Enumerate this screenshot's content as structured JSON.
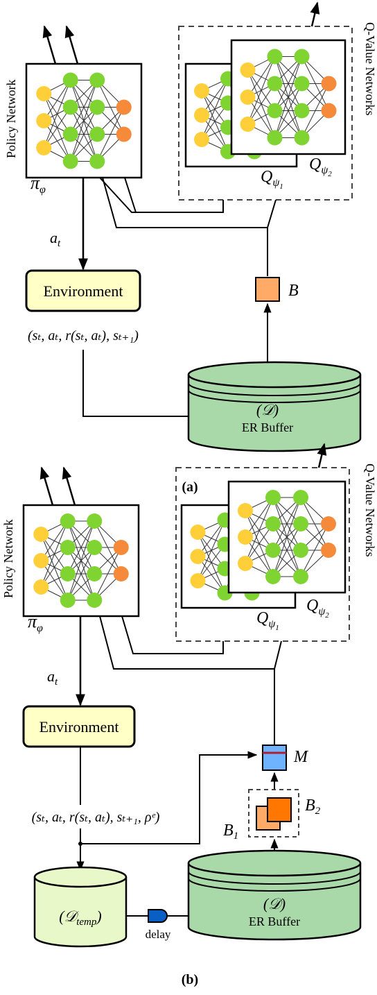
{
  "colors": {
    "input_node": "#ffcf3a",
    "hidden_node": "#7fd432",
    "output_node": "#f58a3a",
    "environment_fill": "#ffffc6",
    "buffer_fill": "#a9d9a9",
    "temp_buffer_fill": "#e9f8c9",
    "batch_fill": "#ffaa66",
    "batch2_fill": "#ff7700",
    "merge_fill": "#6fb3ff",
    "merge_line": "#b01e32",
    "delay_fill": "#0a5fc4",
    "edge": "#333333",
    "arrow": "#000000"
  },
  "panel_a": {
    "caption": "(a)",
    "policy_label": "Policy Network",
    "policy_symbol": "π",
    "policy_sub": "φ",
    "q_label": "Q-Value Networks",
    "q1_symbol": "Q",
    "q1_sub": "ψ",
    "q1_subsub": "1",
    "q2_symbol": "Q",
    "q2_sub": "ψ",
    "q2_subsub": "2",
    "action_base": "a",
    "action_sub": "t",
    "environment": "Environment",
    "transition": "(sₜ, aₜ, r(sₜ, aₜ), sₜ₊₁)",
    "batch_symbol": "B",
    "buffer_symbol": "(𝒟)",
    "buffer_label": "ER Buffer"
  },
  "panel_b": {
    "caption": "(b)",
    "policy_label": "Policy Network",
    "policy_symbol": "π",
    "policy_sub": "φ",
    "q_label": "Q-Value Networks",
    "q1_symbol": "Q",
    "q1_sub": "ψ",
    "q1_subsub": "1",
    "q2_symbol": "Q",
    "q2_sub": "ψ",
    "q2_subsub": "2",
    "action_base": "a",
    "action_sub": "t",
    "environment": "Environment",
    "transition": "(sₜ, aₜ, r(sₜ, aₜ), sₜ₊₁, ρᵉ)",
    "merge_symbol": "M",
    "batch1_base": "B",
    "batch1_sub": "1",
    "batch2_base": "B",
    "batch2_sub": "2",
    "temp_buffer_symbol": "(𝒟",
    "temp_buffer_sub": "temp",
    "temp_buffer_close": ")",
    "delay_label": "delay",
    "buffer_symbol": "(𝒟)",
    "buffer_label": "ER Buffer"
  }
}
